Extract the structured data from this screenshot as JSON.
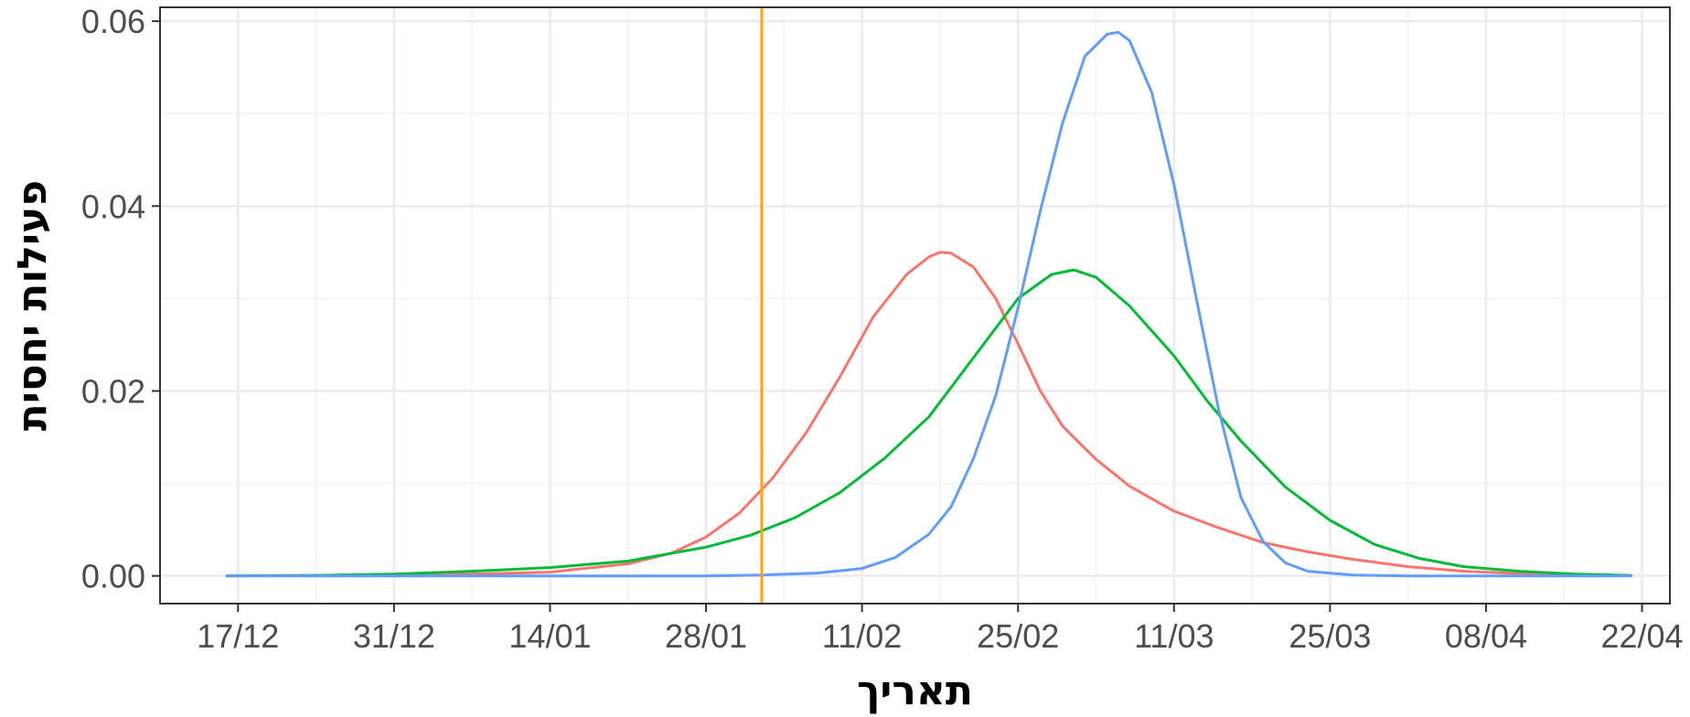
{
  "chart_data": {
    "type": "line",
    "title": "",
    "xlabel": "תאריך",
    "ylabel": "פעילות יחסית",
    "x_tick_labels": [
      "17/12",
      "31/12",
      "14/01",
      "28/01",
      "11/02",
      "25/02",
      "11/03",
      "25/03",
      "08/04",
      "22/04"
    ],
    "y_tick_labels": [
      "0.00",
      "0.02",
      "0.04",
      "0.06"
    ],
    "ylim": [
      -0.003,
      0.0615
    ],
    "y_ticks": [
      0.0,
      0.02,
      0.04,
      0.06
    ],
    "x_axis": {
      "tick_day_offsets": [
        0,
        14,
        28,
        42,
        56,
        70,
        84,
        98,
        112,
        126
      ],
      "xlim_day_offsets": [
        -7,
        128.5
      ]
    },
    "grid": true,
    "legend": "none",
    "vertical_line": {
      "day_offset": 47,
      "color": "#FFA500"
    },
    "series": [
      {
        "color": "#F8766D",
        "points": [
          [
            -1,
            0
          ],
          [
            7,
            5e-05
          ],
          [
            14,
            0.0001
          ],
          [
            21,
            0.0002
          ],
          [
            28,
            0.0004
          ],
          [
            35,
            0.0013
          ],
          [
            39,
            0.0025
          ],
          [
            42,
            0.0042
          ],
          [
            45,
            0.0068
          ],
          [
            48,
            0.0106
          ],
          [
            51,
            0.0155
          ],
          [
            54,
            0.0215
          ],
          [
            57,
            0.028
          ],
          [
            60,
            0.0326
          ],
          [
            62,
            0.0345
          ],
          [
            63,
            0.035
          ],
          [
            64,
            0.0349
          ],
          [
            66,
            0.0334
          ],
          [
            68,
            0.03
          ],
          [
            70,
            0.0251
          ],
          [
            72,
            0.02
          ],
          [
            74,
            0.0162
          ],
          [
            77,
            0.0126
          ],
          [
            80,
            0.0097
          ],
          [
            84,
            0.007
          ],
          [
            88,
            0.0052
          ],
          [
            92,
            0.0036
          ],
          [
            96,
            0.0026
          ],
          [
            100,
            0.0018
          ],
          [
            105,
            0.001
          ],
          [
            110,
            0.0005
          ],
          [
            116,
            0.0002
          ],
          [
            125,
            5e-05
          ]
        ]
      },
      {
        "color": "#00BA38",
        "points": [
          [
            -1,
            0
          ],
          [
            7,
            5e-05
          ],
          [
            14,
            0.0002
          ],
          [
            21,
            0.0005
          ],
          [
            28,
            0.0009
          ],
          [
            35,
            0.0016
          ],
          [
            42,
            0.0031
          ],
          [
            46,
            0.0044
          ],
          [
            50,
            0.0063
          ],
          [
            54,
            0.009
          ],
          [
            58,
            0.0127
          ],
          [
            62,
            0.0172
          ],
          [
            66,
            0.0236
          ],
          [
            70,
            0.03
          ],
          [
            73,
            0.0326
          ],
          [
            75,
            0.0331
          ],
          [
            77,
            0.0323
          ],
          [
            80,
            0.0292
          ],
          [
            84,
            0.0238
          ],
          [
            87,
            0.0189
          ],
          [
            90,
            0.0146
          ],
          [
            94,
            0.0096
          ],
          [
            98,
            0.006
          ],
          [
            102,
            0.0034
          ],
          [
            106,
            0.0019
          ],
          [
            110,
            0.001
          ],
          [
            115,
            0.0005
          ],
          [
            120,
            0.0002
          ],
          [
            125,
            5e-05
          ]
        ]
      },
      {
        "color": "#619CFF",
        "points": [
          [
            -1,
            0
          ],
          [
            14,
            0
          ],
          [
            28,
            0
          ],
          [
            42,
            0
          ],
          [
            47,
            0.0001
          ],
          [
            52,
            0.0003
          ],
          [
            56,
            0.0008
          ],
          [
            59,
            0.002
          ],
          [
            62,
            0.0045
          ],
          [
            64,
            0.0075
          ],
          [
            66,
            0.0127
          ],
          [
            68,
            0.0195
          ],
          [
            70,
            0.029
          ],
          [
            72,
            0.0395
          ],
          [
            74,
            0.049
          ],
          [
            76,
            0.0562
          ],
          [
            78,
            0.0586
          ],
          [
            79,
            0.0588
          ],
          [
            80,
            0.0579
          ],
          [
            82,
            0.0523
          ],
          [
            84,
            0.0423
          ],
          [
            86,
            0.03
          ],
          [
            88,
            0.018
          ],
          [
            90,
            0.0085
          ],
          [
            92,
            0.0037
          ],
          [
            94,
            0.0014
          ],
          [
            96,
            0.0005
          ],
          [
            100,
            0.0001
          ],
          [
            105,
            0
          ],
          [
            125,
            0
          ]
        ]
      }
    ]
  }
}
